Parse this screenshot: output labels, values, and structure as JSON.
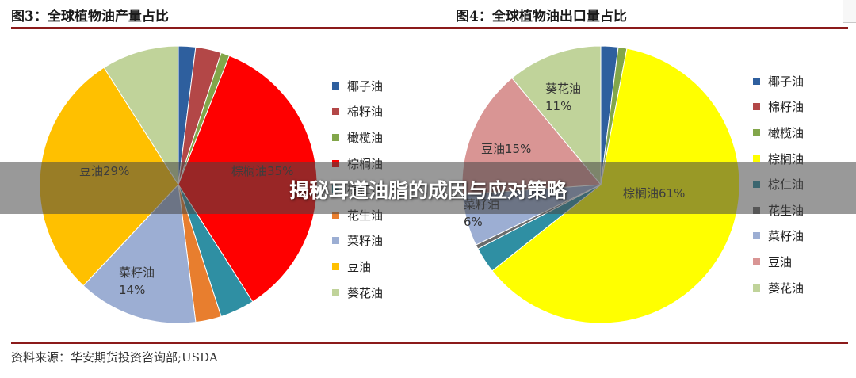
{
  "figure_left_title": "图3：全球植物油产量占比",
  "figure_right_title": "图4：全球植物油出口量占比",
  "source_text": "资料来源：华安期货投资咨询部;USDA",
  "overlay_title": "揭秘耳道油脂的成因与应对策略",
  "chart_data": [
    {
      "type": "pie",
      "title": "图3：全球植物油产量占比",
      "categories": [
        "椰子油",
        "棉籽油",
        "橄榄油",
        "棕榈油",
        "棕仁油",
        "花生油",
        "菜籽油",
        "豆油",
        "葵花油"
      ],
      "values": [
        2,
        3,
        1,
        35,
        4,
        3,
        14,
        29,
        9
      ],
      "colors": [
        "#2e5f9e",
        "#b34747",
        "#82a64a",
        "#ff0000",
        "#2f8fa3",
        "#e87e2e",
        "#9caed3",
        "#ffc000",
        "#c0d39a"
      ],
      "data_labels": [
        "",
        "",
        "",
        "棕榈油35%",
        "",
        "",
        "菜籽油\n14%",
        "豆油29%",
        ""
      ],
      "legend_position": "right"
    },
    {
      "type": "pie",
      "title": "图4：全球植物油出口量占比",
      "categories": [
        "椰子油",
        "棉籽油",
        "橄榄油",
        "棕榈油",
        "棕仁油",
        "花生油",
        "菜籽油",
        "豆油",
        "葵花油"
      ],
      "values": [
        2,
        0,
        1,
        61,
        3,
        0.5,
        6,
        15,
        11
      ],
      "colors": [
        "#2e5f9e",
        "#b34747",
        "#82a64a",
        "#ffff00",
        "#2f8fa3",
        "#6b6b6b",
        "#9caed3",
        "#d99594",
        "#c0d39a"
      ],
      "data_labels": [
        "",
        "",
        "",
        "棕榈油61%",
        "",
        "",
        "菜籽油\n6%",
        "豆油15%",
        "葵花油\n11%"
      ],
      "legend_position": "right"
    }
  ]
}
